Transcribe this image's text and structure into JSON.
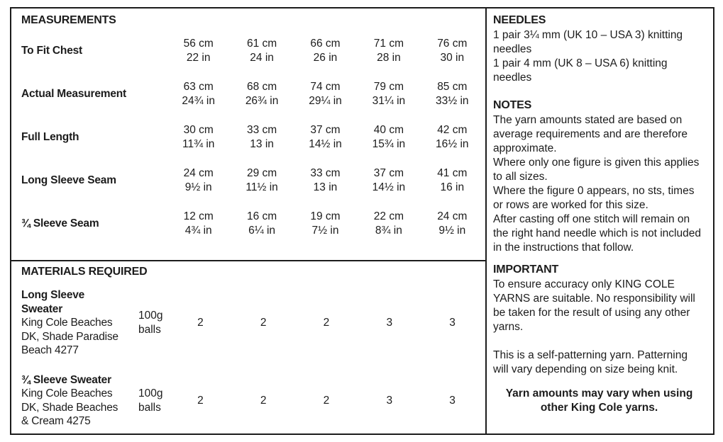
{
  "colors": {
    "text": "#1c1c1c",
    "border": "#1c1c1c",
    "background": "#ffffff"
  },
  "measurements": {
    "title": "MEASUREMENTS",
    "rows": [
      {
        "label": "To Fit Chest",
        "values": [
          {
            "cm": "56 cm",
            "in": "22 in"
          },
          {
            "cm": "61 cm",
            "in": "24 in"
          },
          {
            "cm": "66 cm",
            "in": "26 in"
          },
          {
            "cm": "71 cm",
            "in": "28 in"
          },
          {
            "cm": "76 cm",
            "in": "30 in"
          }
        ]
      },
      {
        "label": "Actual Measurement",
        "values": [
          {
            "cm": "63 cm",
            "in": "24¾ in"
          },
          {
            "cm": "68 cm",
            "in": "26¾ in"
          },
          {
            "cm": "74 cm",
            "in": "29¼ in"
          },
          {
            "cm": "79 cm",
            "in": "31¼ in"
          },
          {
            "cm": "85 cm",
            "in": "33½ in"
          }
        ]
      },
      {
        "label": "Full Length",
        "values": [
          {
            "cm": "30 cm",
            "in": "11¾ in"
          },
          {
            "cm": "33 cm",
            "in": "13 in"
          },
          {
            "cm": "37 cm",
            "in": "14½ in"
          },
          {
            "cm": "40 cm",
            "in": "15¾ in"
          },
          {
            "cm": "42 cm",
            "in": "16½ in"
          }
        ]
      },
      {
        "label": "Long Sleeve Seam",
        "values": [
          {
            "cm": "24 cm",
            "in": "9½ in"
          },
          {
            "cm": "29 cm",
            "in": "11½ in"
          },
          {
            "cm": "33 cm",
            "in": "13 in"
          },
          {
            "cm": "37 cm",
            "in": "14½ in"
          },
          {
            "cm": "41 cm",
            "in": "16 in"
          }
        ]
      },
      {
        "label": "¾ Sleeve Seam",
        "values": [
          {
            "cm": "12 cm",
            "in": "4¾ in"
          },
          {
            "cm": "16 cm",
            "in": "6¼ in"
          },
          {
            "cm": "19 cm",
            "in": "7½ in"
          },
          {
            "cm": "22 cm",
            "in": "8¾ in"
          },
          {
            "cm": "24 cm",
            "in": "9½ in"
          }
        ]
      }
    ]
  },
  "materials": {
    "title": "MATERIALS REQUIRED",
    "rows": [
      {
        "title": "Long Sleeve\nSweater",
        "desc": "King Cole Beaches\nDK, Shade Paradise\nBeach 4277",
        "unit": "100g\nballs",
        "quantities": [
          "2",
          "2",
          "2",
          "3",
          "3"
        ]
      },
      {
        "title": "¾ Sleeve Sweater",
        "desc": "King Cole Beaches\nDK, Shade Beaches\n& Cream 4275",
        "unit": "100g\nballs",
        "quantities": [
          "2",
          "2",
          "2",
          "3",
          "3"
        ]
      }
    ]
  },
  "needles": {
    "title": "NEEDLES",
    "lines": [
      "1 pair 3¼ mm (UK 10 – USA 3) knitting needles",
      "1 pair 4 mm (UK 8 – USA 6) knitting needles"
    ]
  },
  "notes": {
    "title": "NOTES",
    "paragraphs": [
      "The yarn amounts stated are based on average requirements and are therefore approximate.",
      "Where only one figure is given this applies to all sizes.",
      "Where the figure 0 appears, no sts, times or rows are worked for this size.",
      "After casting off one stitch will remain on the right hand needle which is not included in the instructions that follow."
    ]
  },
  "important": {
    "title": "IMPORTANT",
    "paragraphs": [
      "To ensure accuracy only KING COLE YARNS are suitable. No responsibility will be taken for the result of using any other yarns.",
      "This is a self-patterning yarn. Patterning will vary depending on size being knit."
    ],
    "warning": "Yarn amounts may vary when using other King Cole yarns."
  }
}
